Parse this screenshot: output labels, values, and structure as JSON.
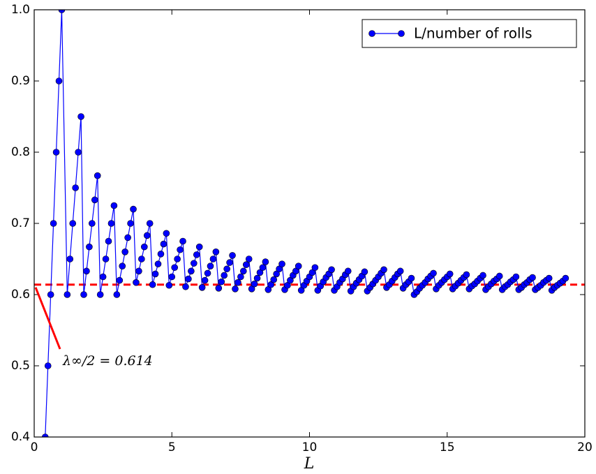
{
  "chart_data": {
    "type": "line",
    "xlabel": "L",
    "x": [
      0.4,
      0.5,
      0.6,
      0.7,
      0.8,
      0.9,
      1.0,
      1.2,
      1.3,
      1.4,
      1.5,
      1.6,
      1.7,
      1.8,
      1.9,
      2.0,
      2.1,
      2.2,
      2.3,
      2.4,
      2.5,
      2.6,
      2.7,
      2.8,
      2.9,
      3.0,
      3.1,
      3.2,
      3.3,
      3.4,
      3.5,
      3.6,
      3.7,
      3.8,
      3.9,
      4.0,
      4.1,
      4.2,
      4.3,
      4.4,
      4.5,
      4.6,
      4.7,
      4.8,
      4.9,
      5.0,
      5.1,
      5.2,
      5.3,
      5.4,
      5.5,
      5.6,
      5.7,
      5.8,
      5.9,
      6.0,
      6.1,
      6.2,
      6.3,
      6.4,
      6.5,
      6.6,
      6.7,
      6.8,
      6.9,
      7.0,
      7.1,
      7.2,
      7.3,
      7.4,
      7.5,
      7.6,
      7.7,
      7.8,
      7.9,
      8.0,
      8.1,
      8.2,
      8.3,
      8.4,
      8.5,
      8.6,
      8.7,
      8.8,
      8.9,
      9.0,
      9.1,
      9.2,
      9.3,
      9.4,
      9.5,
      9.6,
      9.7,
      9.8,
      9.9,
      10.0,
      10.1,
      10.2,
      10.3,
      10.4,
      10.5,
      10.6,
      10.7,
      10.8,
      10.9,
      11.0,
      11.1,
      11.2,
      11.3,
      11.4,
      11.5,
      11.6,
      11.7,
      11.8,
      11.9,
      12.0,
      12.1,
      12.2,
      12.3,
      12.4,
      12.5,
      12.6,
      12.7,
      12.8,
      12.9,
      13.0,
      13.1,
      13.2,
      13.3,
      13.4,
      13.5,
      13.6,
      13.7,
      13.8,
      13.9,
      14.0,
      14.1,
      14.2,
      14.3,
      14.4,
      14.5,
      14.6,
      14.7,
      14.8,
      14.9,
      15.0,
      15.1,
      15.2,
      15.3,
      15.4,
      15.5,
      15.6,
      15.7,
      15.8,
      15.9,
      16.0,
      16.1,
      16.2,
      16.3,
      16.4,
      16.5,
      16.6,
      16.7,
      16.8,
      16.9,
      17.0,
      17.1,
      17.2,
      17.3,
      17.4,
      17.5,
      17.6,
      17.7,
      17.8,
      17.9,
      18.0,
      18.1,
      18.2,
      18.3,
      18.4,
      18.5,
      18.6,
      18.7,
      18.8,
      18.9,
      19.0,
      19.1,
      19.2,
      19.3
    ],
    "series": [
      {
        "name": "L/number of rolls",
        "color": "#0000ff",
        "values": [
          0.4,
          0.5,
          0.6,
          0.7,
          0.8,
          0.9,
          1.0,
          0.6,
          0.65,
          0.7,
          0.75,
          0.8,
          0.85,
          0.6,
          0.633,
          0.667,
          0.7,
          0.733,
          0.767,
          0.6,
          0.625,
          0.65,
          0.675,
          0.7,
          0.725,
          0.6,
          0.62,
          0.64,
          0.66,
          0.68,
          0.7,
          0.72,
          0.617,
          0.633,
          0.65,
          0.667,
          0.683,
          0.7,
          0.614,
          0.629,
          0.643,
          0.657,
          0.671,
          0.686,
          0.613,
          0.625,
          0.638,
          0.65,
          0.663,
          0.675,
          0.611,
          0.622,
          0.633,
          0.644,
          0.656,
          0.667,
          0.61,
          0.62,
          0.63,
          0.64,
          0.65,
          0.66,
          0.609,
          0.618,
          0.627,
          0.636,
          0.645,
          0.655,
          0.608,
          0.617,
          0.625,
          0.633,
          0.642,
          0.65,
          0.608,
          0.615,
          0.623,
          0.631,
          0.638,
          0.646,
          0.607,
          0.614,
          0.621,
          0.629,
          0.636,
          0.643,
          0.607,
          0.613,
          0.62,
          0.627,
          0.633,
          0.64,
          0.606,
          0.613,
          0.619,
          0.625,
          0.631,
          0.638,
          0.606,
          0.612,
          0.618,
          0.624,
          0.629,
          0.635,
          0.606,
          0.611,
          0.617,
          0.622,
          0.628,
          0.633,
          0.605,
          0.611,
          0.616,
          0.621,
          0.626,
          0.632,
          0.605,
          0.61,
          0.615,
          0.62,
          0.625,
          0.63,
          0.635,
          0.61,
          0.614,
          0.619,
          0.624,
          0.629,
          0.633,
          0.609,
          0.614,
          0.618,
          0.623,
          0.6,
          0.604,
          0.609,
          0.613,
          0.617,
          0.622,
          0.626,
          0.63,
          0.608,
          0.613,
          0.617,
          0.621,
          0.625,
          0.629,
          0.608,
          0.612,
          0.616,
          0.62,
          0.624,
          0.628,
          0.608,
          0.612,
          0.615,
          0.619,
          0.623,
          0.627,
          0.607,
          0.611,
          0.615,
          0.619,
          0.622,
          0.626,
          0.607,
          0.611,
          0.614,
          0.618,
          0.621,
          0.625,
          0.607,
          0.61,
          0.614,
          0.617,
          0.621,
          0.624,
          0.607,
          0.61,
          0.613,
          0.617,
          0.62,
          0.623,
          0.606,
          0.61,
          0.613,
          0.616,
          0.619,
          0.623
        ]
      }
    ],
    "hline": {
      "value": 0.614,
      "color": "#ff0000",
      "label": "λ∞/2 = 0.614"
    },
    "xlim": [
      0,
      20
    ],
    "xticks": [
      0,
      5,
      10,
      15,
      20
    ],
    "ylim": [
      0.4,
      1.0
    ],
    "yticks": [
      0.4,
      0.5,
      0.6,
      0.7,
      0.8,
      0.9,
      {
        "value": 1.0,
        "label": "1.0"
      }
    ],
    "legend": "upper right"
  }
}
